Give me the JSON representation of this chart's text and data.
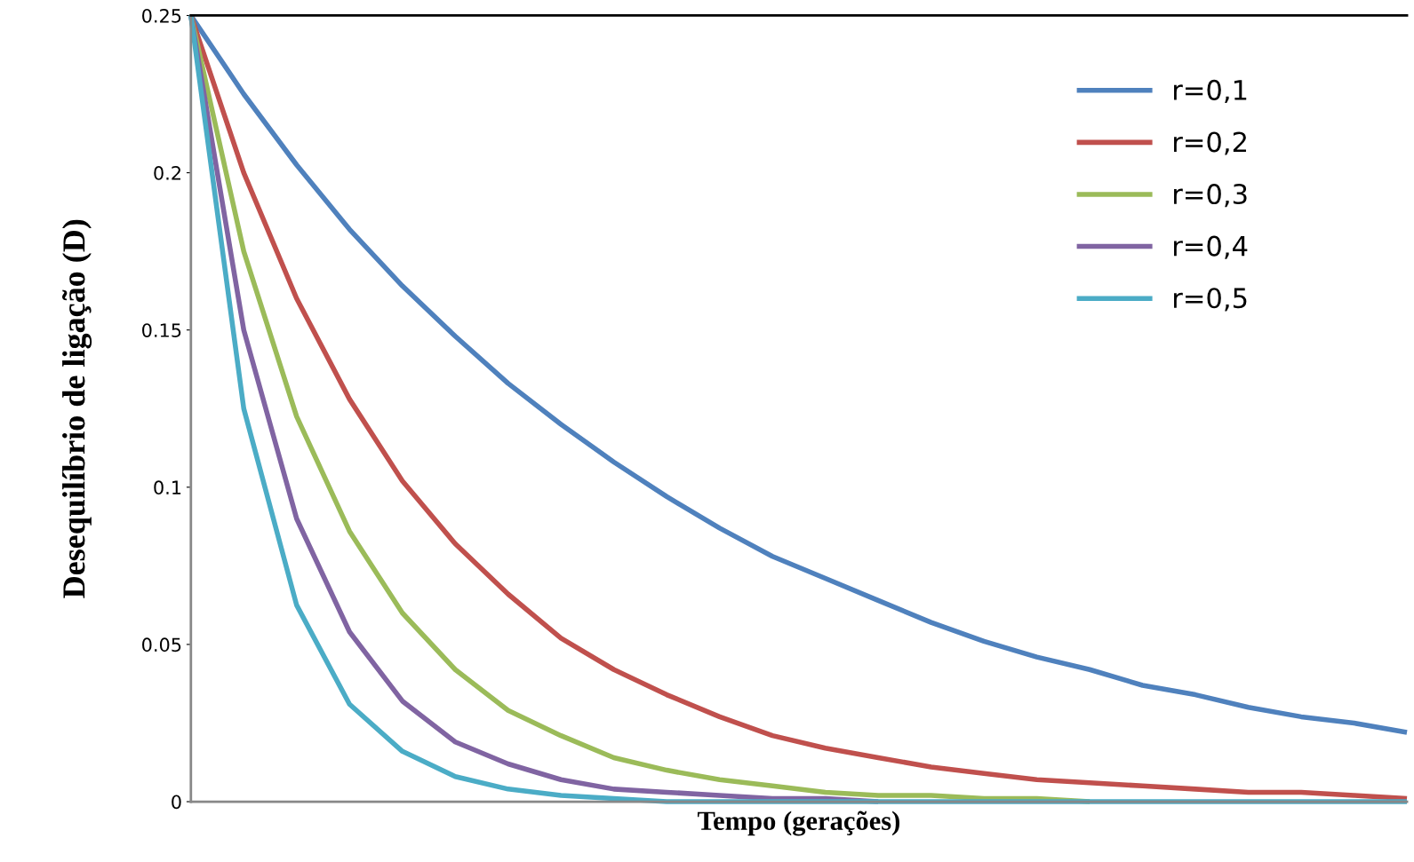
{
  "chart_data": {
    "type": "line",
    "xlabel": "Tempo (gerações)",
    "ylabel": "Desequilíbrio de ligação (D)",
    "categories": [
      null,
      null,
      null,
      null,
      null,
      null,
      null,
      null,
      null,
      null,
      null,
      null,
      null,
      null,
      null,
      null,
      null,
      null,
      null,
      null,
      null,
      null,
      null,
      null
    ],
    "ylim": [
      0,
      0.25
    ],
    "yticks": [
      0,
      0.05,
      0.1,
      0.15,
      0.2,
      0.25
    ],
    "grid": false,
    "legend": "top right",
    "marker": "none",
    "line_style": "solid",
    "series": [
      {
        "name": "r=0,1",
        "color": "#4f81bd",
        "values": [
          0.25,
          0.225,
          0.2025,
          0.182,
          0.164,
          0.148,
          0.133,
          0.12,
          0.108,
          0.097,
          0.087,
          0.078,
          0.071,
          0.064,
          0.057,
          0.051,
          0.046,
          0.042,
          0.037,
          0.034,
          0.03,
          0.027,
          0.025,
          0.022
        ]
      },
      {
        "name": "r=0,2",
        "color": "#c0504d",
        "values": [
          0.25,
          0.2,
          0.16,
          0.128,
          0.102,
          0.082,
          0.066,
          0.052,
          0.042,
          0.034,
          0.027,
          0.021,
          0.017,
          0.014,
          0.011,
          0.009,
          0.007,
          0.006,
          0.005,
          0.004,
          0.003,
          0.003,
          0.002,
          0.001
        ]
      },
      {
        "name": "r=0,3",
        "color": "#9bbb59",
        "values": [
          0.25,
          0.175,
          0.1225,
          0.086,
          0.06,
          0.042,
          0.029,
          0.021,
          0.014,
          0.01,
          0.007,
          0.005,
          0.003,
          0.002,
          0.002,
          0.001,
          0.001,
          0,
          null,
          null,
          null,
          null,
          null,
          null
        ]
      },
      {
        "name": "r=0,4",
        "color": "#8064a2",
        "values": [
          0.25,
          0.15,
          0.09,
          0.054,
          0.032,
          0.019,
          0.012,
          0.007,
          0.004,
          0.003,
          0.002,
          0.001,
          0.001,
          0,
          null,
          null,
          null,
          null,
          null,
          null,
          null,
          null,
          null,
          null
        ]
      },
      {
        "name": "r=0,5",
        "color": "#4bacc6",
        "values": [
          0.25,
          0.125,
          0.0625,
          0.031,
          0.016,
          0.008,
          0.004,
          0.002,
          0.001,
          0,
          0,
          0,
          0,
          0,
          0,
          0,
          0,
          0,
          0,
          0,
          0,
          0,
          0,
          0
        ]
      }
    ]
  }
}
